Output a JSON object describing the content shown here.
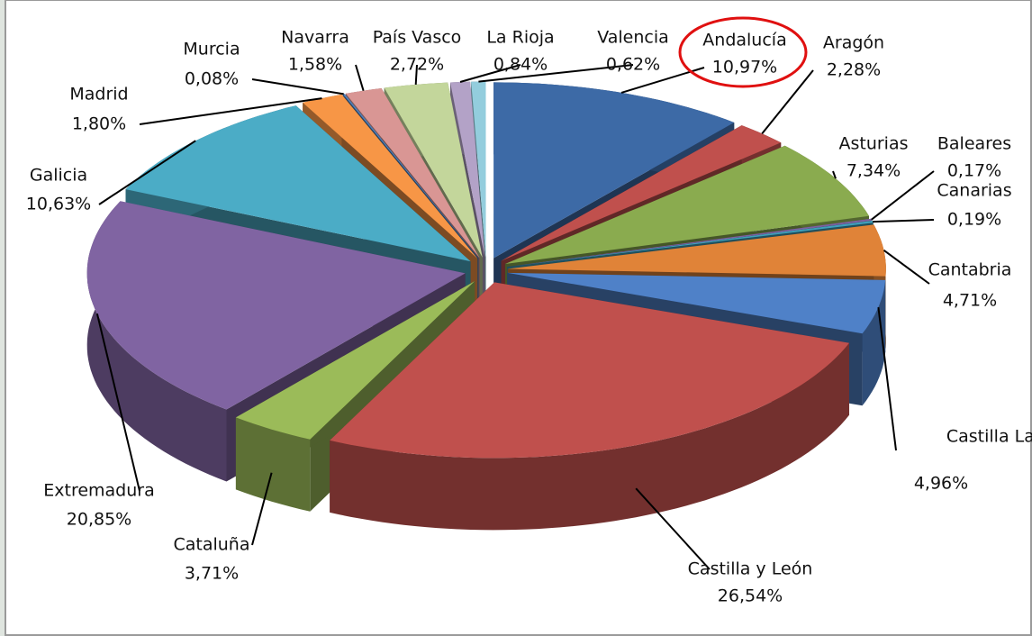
{
  "chart_data": {
    "type": "pie3d",
    "categories": [
      "Andalucía",
      "Aragón",
      "Asturias",
      "Baleares",
      "Canarias",
      "Cantabria",
      "Castilla La Mancha",
      "Castilla y León",
      "Cataluña",
      "Extremadura",
      "Galicia",
      "Madrid",
      "Murcia",
      "Navarra",
      "País Vasco",
      "La Rioja",
      "Valencia"
    ],
    "values": [
      10.97,
      2.28,
      7.34,
      0.17,
      0.19,
      4.71,
      4.96,
      26.54,
      3.71,
      20.85,
      10.63,
      1.8,
      0.08,
      1.58,
      2.72,
      0.84,
      0.62
    ],
    "value_labels": [
      "10,97%",
      "2,28%",
      "7,34%",
      "0,17%",
      "0,19%",
      "4,71%",
      "4,96%",
      "26,54%",
      "3,71%",
      "20,85%",
      "10,63%",
      "1,80%",
      "0,08%",
      "1,58%",
      "2,72%",
      "0,84%",
      "0,62%"
    ],
    "colors": [
      "#3d6aa6",
      "#c0504d",
      "#8aab4f",
      "#7c62a0",
      "#3f9fba",
      "#e08338",
      "#4f81c8",
      "#c0504d",
      "#9bbb59",
      "#8064a2",
      "#4bacc6",
      "#f79646",
      "#4f81bd",
      "#d99694",
      "#c3d69b",
      "#b3a2c7",
      "#93cddd"
    ]
  }
}
